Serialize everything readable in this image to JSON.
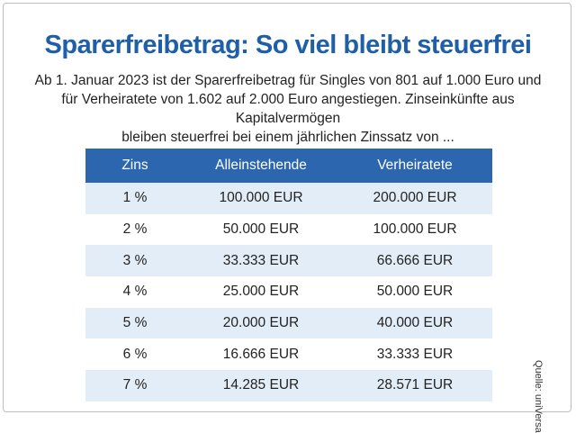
{
  "title": "Sparerfreibetrag: So viel bleibt steuerfrei",
  "intro": [
    "Ab 1. Januar 2023 ist der Sparerfreibetrag für Singles von 801 auf 1.000 Euro und",
    "für Verheiratete von 1.602 auf 2.000 Euro angestiegen. Zinseinkünfte aus Kapitalvermögen",
    "bleiben steuerfrei bei einem jährlichen Zinssatz von ..."
  ],
  "source": "Quelle: uniVersa",
  "chart_data": {
    "type": "table",
    "columns": [
      "Zins",
      "Alleinstehende",
      "Verheiratete"
    ],
    "rows": [
      [
        "1 %",
        "100.000 EUR",
        "200.000 EUR"
      ],
      [
        "2 %",
        "50.000 EUR",
        "100.000 EUR"
      ],
      [
        "3 %",
        "33.333 EUR",
        "66.666 EUR"
      ],
      [
        "4 %",
        "25.000 EUR",
        "50.000 EUR"
      ],
      [
        "5 %",
        "20.000 EUR",
        "40.000 EUR"
      ],
      [
        "6 %",
        "16.666 EUR",
        "33.333 EUR"
      ],
      [
        "7 %",
        "14.285 EUR",
        "28.571 EUR"
      ]
    ]
  },
  "colors": {
    "title": "#1e5fa8",
    "header_bg": "#2c66ae",
    "row_shade": "#e3edf7"
  }
}
